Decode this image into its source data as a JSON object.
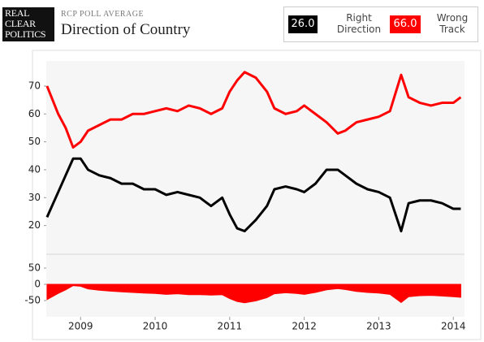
{
  "header": {
    "logo": [
      "REAL",
      "CLEAR",
      "POLITICS"
    ],
    "subtitle": "RCP POLL AVERAGE",
    "title": "Direction of Country"
  },
  "chart_data": [
    {
      "type": "line",
      "x": [
        2008.55,
        2008.7,
        2008.8,
        2008.9,
        2009.0,
        2009.1,
        2009.25,
        2009.4,
        2009.55,
        2009.7,
        2009.85,
        2010.0,
        2010.15,
        2010.3,
        2010.45,
        2010.6,
        2010.75,
        2010.9,
        2011.0,
        2011.1,
        2011.2,
        2011.35,
        2011.5,
        2011.6,
        2011.75,
        2011.9,
        2012.0,
        2012.15,
        2012.3,
        2012.45,
        2012.55,
        2012.7,
        2012.85,
        2013.0,
        2013.15,
        2013.3,
        2013.4,
        2013.55,
        2013.7,
        2013.85,
        2014.0,
        2014.1
      ],
      "series": [
        {
          "name": "Right Direction",
          "color": "#000000",
          "current_label": "26.0",
          "values": [
            23,
            32,
            38,
            44,
            44,
            40,
            38,
            37,
            35,
            35,
            33,
            33,
            31,
            32,
            31,
            30,
            27,
            30,
            24,
            19,
            18,
            22,
            27,
            33,
            34,
            33,
            32,
            35,
            40,
            40,
            38,
            35,
            33,
            32,
            30,
            18,
            28,
            29,
            29,
            28,
            26,
            26
          ]
        },
        {
          "name": "Wrong Track",
          "color": "#ff0000",
          "current_label": "66.0",
          "values": [
            70,
            60,
            55,
            48,
            50,
            54,
            56,
            58,
            58,
            60,
            60,
            61,
            62,
            61,
            63,
            62,
            60,
            62,
            68,
            72,
            75,
            73,
            68,
            62,
            60,
            61,
            63,
            60,
            57,
            53,
            54,
            57,
            58,
            59,
            61,
            74,
            66,
            64,
            63,
            64,
            64,
            66
          ]
        }
      ],
      "xlim": [
        2008.54,
        2014.15
      ],
      "ylim": [
        10,
        79
      ],
      "yticks": [
        20,
        30,
        40,
        50,
        60,
        70
      ]
    },
    {
      "type": "area",
      "x": [
        2008.55,
        2008.7,
        2008.8,
        2008.9,
        2009.0,
        2009.1,
        2009.25,
        2009.4,
        2009.55,
        2009.7,
        2009.85,
        2010.0,
        2010.15,
        2010.3,
        2010.45,
        2010.6,
        2010.75,
        2010.9,
        2011.0,
        2011.1,
        2011.2,
        2011.35,
        2011.5,
        2011.6,
        2011.75,
        2011.9,
        2012.0,
        2012.15,
        2012.3,
        2012.45,
        2012.55,
        2012.7,
        2012.85,
        2013.0,
        2013.15,
        2013.3,
        2013.4,
        2013.55,
        2013.7,
        2013.85,
        2014.0,
        2014.1
      ],
      "color": "#ff0000",
      "values": [
        -47,
        -28,
        -17,
        -4,
        -6,
        -14,
        -18,
        -21,
        -23,
        -25,
        -27,
        -28,
        -31,
        -29,
        -32,
        -32,
        -33,
        -32,
        -44,
        -53,
        -57,
        -51,
        -41,
        -29,
        -26,
        -28,
        -31,
        -25,
        -17,
        -13,
        -16,
        -22,
        -25,
        -27,
        -31,
        -56,
        -38,
        -35,
        -34,
        -36,
        -38,
        -40
      ],
      "xlim": [
        2008.54,
        2014.15
      ],
      "xticks": [
        2009,
        2010,
        2011,
        2012,
        2013,
        2014
      ],
      "ylim": [
        -100,
        90
      ],
      "yticks": [
        -50,
        0,
        50
      ]
    }
  ]
}
